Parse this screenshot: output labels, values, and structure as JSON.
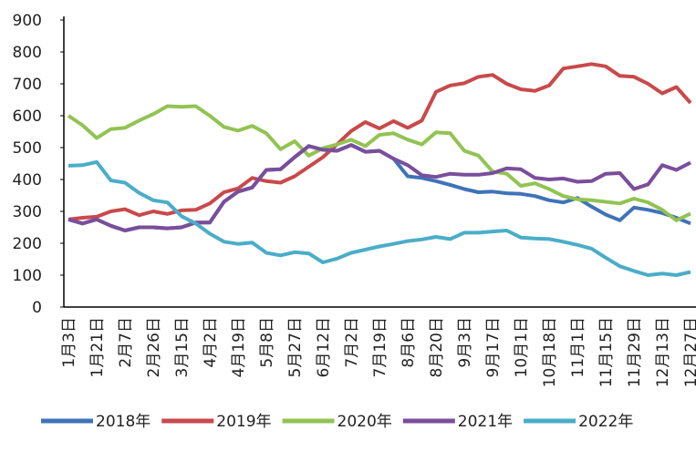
{
  "chart_data": {
    "type": "line",
    "categories": [
      "1月3日",
      null,
      "1月21日",
      null,
      "2月7日",
      null,
      "2月26日",
      null,
      "3月15日",
      null,
      "4月2日",
      null,
      "4月19日",
      null,
      "5月8日",
      null,
      "5月27日",
      null,
      "6月12日",
      null,
      "7月2日",
      null,
      "7月19日",
      null,
      "8月6日",
      null,
      "8月20日",
      null,
      "9月3日",
      null,
      "9月17日",
      null,
      "10月1日",
      null,
      "10月18日",
      null,
      "11月1日",
      null,
      "11月15日",
      null,
      "11月29日",
      null,
      "12月13日",
      null,
      "12月27日"
    ],
    "series": [
      {
        "name": "2018年",
        "color": "#3f73b8",
        "values": [
          275,
          262,
          275,
          255,
          240,
          250,
          250,
          247,
          250,
          265,
          265,
          330,
          362,
          375,
          430,
          432,
          470,
          505,
          493,
          490,
          508,
          487,
          490,
          465,
          410,
          405,
          395,
          383,
          370,
          360,
          362,
          357,
          355,
          348,
          335,
          328,
          342,
          315,
          290,
          272,
          312,
          305,
          295,
          280,
          262
        ]
      },
      {
        "name": "2019年",
        "color": "#c9494a",
        "values": [
          275,
          280,
          283,
          300,
          307,
          288,
          300,
          292,
          303,
          305,
          325,
          360,
          372,
          405,
          395,
          390,
          410,
          440,
          470,
          510,
          552,
          580,
          560,
          583,
          562,
          585,
          675,
          695,
          702,
          722,
          728,
          700,
          683,
          678,
          695,
          748,
          755,
          762,
          755,
          725,
          722,
          700,
          670,
          690,
          640
        ]
      },
      {
        "name": "2020年",
        "color": "#92c353",
        "values": [
          600,
          570,
          530,
          558,
          562,
          585,
          605,
          630,
          628,
          630,
          600,
          565,
          553,
          568,
          545,
          495,
          520,
          475,
          498,
          510,
          525,
          505,
          540,
          545,
          525,
          510,
          548,
          545,
          490,
          475,
          425,
          418,
          380,
          388,
          370,
          348,
          338,
          335,
          330,
          325,
          340,
          328,
          305,
          272,
          293
        ]
      },
      {
        "name": "2021年",
        "color": "#7a4e9b",
        "values": [
          275,
          262,
          275,
          255,
          240,
          250,
          250,
          247,
          250,
          265,
          265,
          330,
          362,
          375,
          430,
          432,
          470,
          505,
          493,
          490,
          508,
          487,
          490,
          465,
          445,
          413,
          408,
          418,
          415,
          415,
          420,
          435,
          432,
          405,
          400,
          403,
          393,
          395,
          418,
          420,
          370,
          385,
          445,
          430,
          453
        ]
      },
      {
        "name": "2022年",
        "color": "#4badc8",
        "values": [
          443,
          445,
          455,
          397,
          390,
          358,
          335,
          328,
          285,
          262,
          230,
          205,
          198,
          202,
          170,
          162,
          172,
          168,
          140,
          152,
          170,
          180,
          190,
          198,
          207,
          212,
          220,
          213,
          233,
          233,
          237,
          240,
          218,
          215,
          213,
          205,
          195,
          183,
          155,
          128,
          113,
          100,
          105,
          100,
          110
        ]
      }
    ],
    "ylim": [
      0,
      900
    ],
    "yticks": [
      0,
      100,
      200,
      300,
      400,
      500,
      600,
      700,
      800,
      900
    ]
  }
}
